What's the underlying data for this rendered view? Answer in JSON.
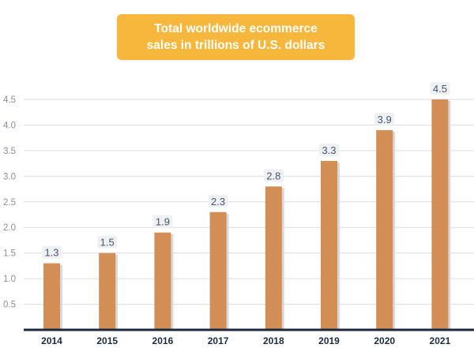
{
  "chart_data": {
    "type": "bar",
    "title_lines": [
      "Total worldwide ecommerce",
      "sales in trillions of U.S. dollars"
    ],
    "categories": [
      "2014",
      "2015",
      "2016",
      "2017",
      "2018",
      "2019",
      "2020",
      "2021"
    ],
    "values": [
      1.3,
      1.5,
      1.9,
      2.3,
      2.8,
      3.3,
      3.9,
      4.5
    ],
    "value_labels": [
      "1.3",
      "1.5",
      "1.9",
      "2.3",
      "2.8",
      "3.3",
      "3.9",
      "4.5"
    ],
    "y_ticks": [
      {
        "value": 0.5,
        "label": "0.5"
      },
      {
        "value": 1.0,
        "label": "1.0"
      },
      {
        "value": 1.5,
        "label": "1.5"
      },
      {
        "value": 2.0,
        "label": "2.0"
      },
      {
        "value": 2.5,
        "label": "2.5"
      },
      {
        "value": 3.0,
        "label": "3.0"
      },
      {
        "value": 3.5,
        "label": "3.5"
      },
      {
        "value": 4.0,
        "label": "4.0"
      },
      {
        "value": 4.5,
        "label": "4.5"
      }
    ],
    "ylim": [
      0,
      4.5
    ],
    "grid": true,
    "colors": {
      "bar": "#d38e55",
      "bar_shadow": "#d9d9d9",
      "title_bg": "#f6b73c",
      "axis": "#1b2a3f",
      "grid": "#dcdcdc",
      "label_bg": "#eef0f3",
      "label_text": "#4a5668"
    }
  }
}
